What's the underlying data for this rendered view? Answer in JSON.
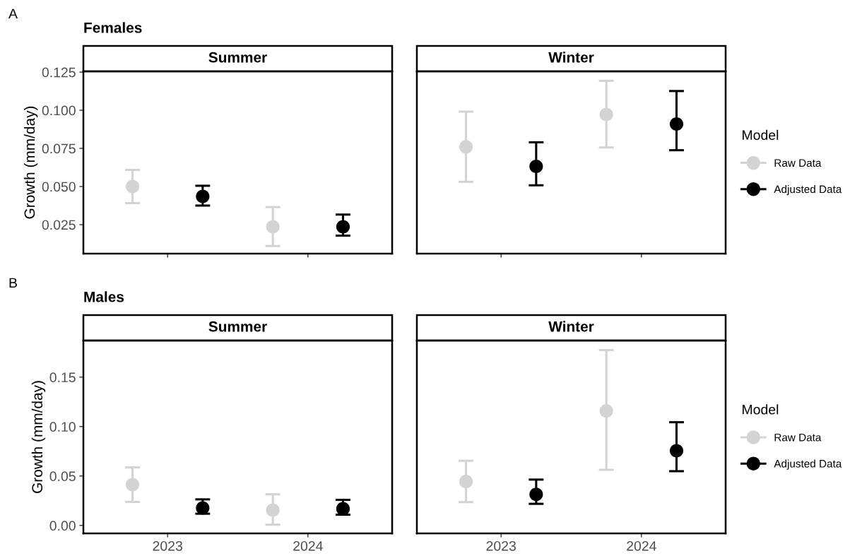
{
  "chart_data": [
    {
      "type": "scatter",
      "title": "Summer",
      "annotations": [
        "A",
        "Females"
      ],
      "ylabel": "Growth (mm/day)",
      "categories": [
        "2023",
        "2024"
      ],
      "ylim": [
        0.006,
        0.1255
      ],
      "yticks": [
        {
          "value": 0.025,
          "label": "0.025"
        },
        {
          "value": 0.05,
          "label": "0.050"
        },
        {
          "value": 0.075,
          "label": "0.075"
        },
        {
          "value": 0.1,
          "label": "0.100"
        },
        {
          "value": 0.125,
          "label": "0.125"
        }
      ],
      "tick_labels": "y",
      "marker": "circle",
      "grid": false,
      "series": [
        {
          "color": "#d3d3d3",
          "values": [
            0.05,
            0.0236
          ],
          "errors": [
            [
              0.0391,
              0.0609
            ],
            [
              0.011,
              0.0365
            ]
          ]
        },
        {
          "color": "#000000",
          "values": [
            0.0435,
            0.0236
          ],
          "errors": [
            [
              0.0375,
              0.0505
            ],
            [
              0.0178,
              0.0316
            ]
          ]
        }
      ]
    },
    {
      "type": "scatter",
      "title": "Winter",
      "legend_title": "Model",
      "legend": "right",
      "categories": [
        "2023",
        "2024"
      ],
      "ylim": [
        0.006,
        0.1255
      ],
      "tick_labels": false,
      "marker": "circle",
      "grid": false,
      "series": [
        {
          "name": "Raw Data",
          "color": "#d3d3d3",
          "values": [
            0.076,
            0.0972
          ],
          "errors": [
            [
              0.0531,
              0.0991
            ],
            [
              0.0756,
              0.1193
            ]
          ]
        },
        {
          "name": "Adjusted Data",
          "color": "#000000",
          "values": [
            0.0632,
            0.091
          ],
          "errors": [
            [
              0.0508,
              0.079
            ],
            [
              0.0738,
              0.1126
            ]
          ]
        }
      ]
    },
    {
      "type": "scatter",
      "title": "Summer",
      "annotations": [
        "B",
        "Males"
      ],
      "ylabel": "Growth (mm/day)",
      "categories": [
        "2023",
        "2024"
      ],
      "ylim": [
        -0.008,
        0.187
      ],
      "yticks": [
        {
          "value": 0.0,
          "label": "0.00"
        },
        {
          "value": 0.05,
          "label": "0.05"
        },
        {
          "value": 0.1,
          "label": "0.10"
        },
        {
          "value": 0.15,
          "label": "0.15"
        }
      ],
      "marker": "circle",
      "grid": false,
      "series": [
        {
          "color": "#d3d3d3",
          "values": [
            0.0413,
            0.0156
          ],
          "errors": [
            [
              0.0238,
              0.0587
            ],
            [
              0.0008,
              0.0315
            ]
          ]
        },
        {
          "color": "#000000",
          "values": [
            0.0177,
            0.0169
          ],
          "errors": [
            [
              0.0119,
              0.0264
            ],
            [
              0.0109,
              0.0259
            ]
          ]
        }
      ]
    },
    {
      "type": "scatter",
      "title": "Winter",
      "legend_title": "Model",
      "legend": "right",
      "categories": [
        "2023",
        "2024"
      ],
      "ylim": [
        -0.008,
        0.187
      ],
      "tick_labels": "x",
      "marker": "circle",
      "grid": false,
      "series": [
        {
          "name": "Raw Data",
          "color": "#d3d3d3",
          "values": [
            0.0444,
            0.1158
          ],
          "errors": [
            [
              0.0236,
              0.0654
            ],
            [
              0.0563,
              0.1773
            ]
          ]
        },
        {
          "name": "Adjusted Data",
          "color": "#000000",
          "values": [
            0.0315,
            0.0755
          ],
          "errors": [
            [
              0.0219,
              0.0464
            ],
            [
              0.0549,
              0.1044
            ]
          ]
        }
      ]
    }
  ]
}
